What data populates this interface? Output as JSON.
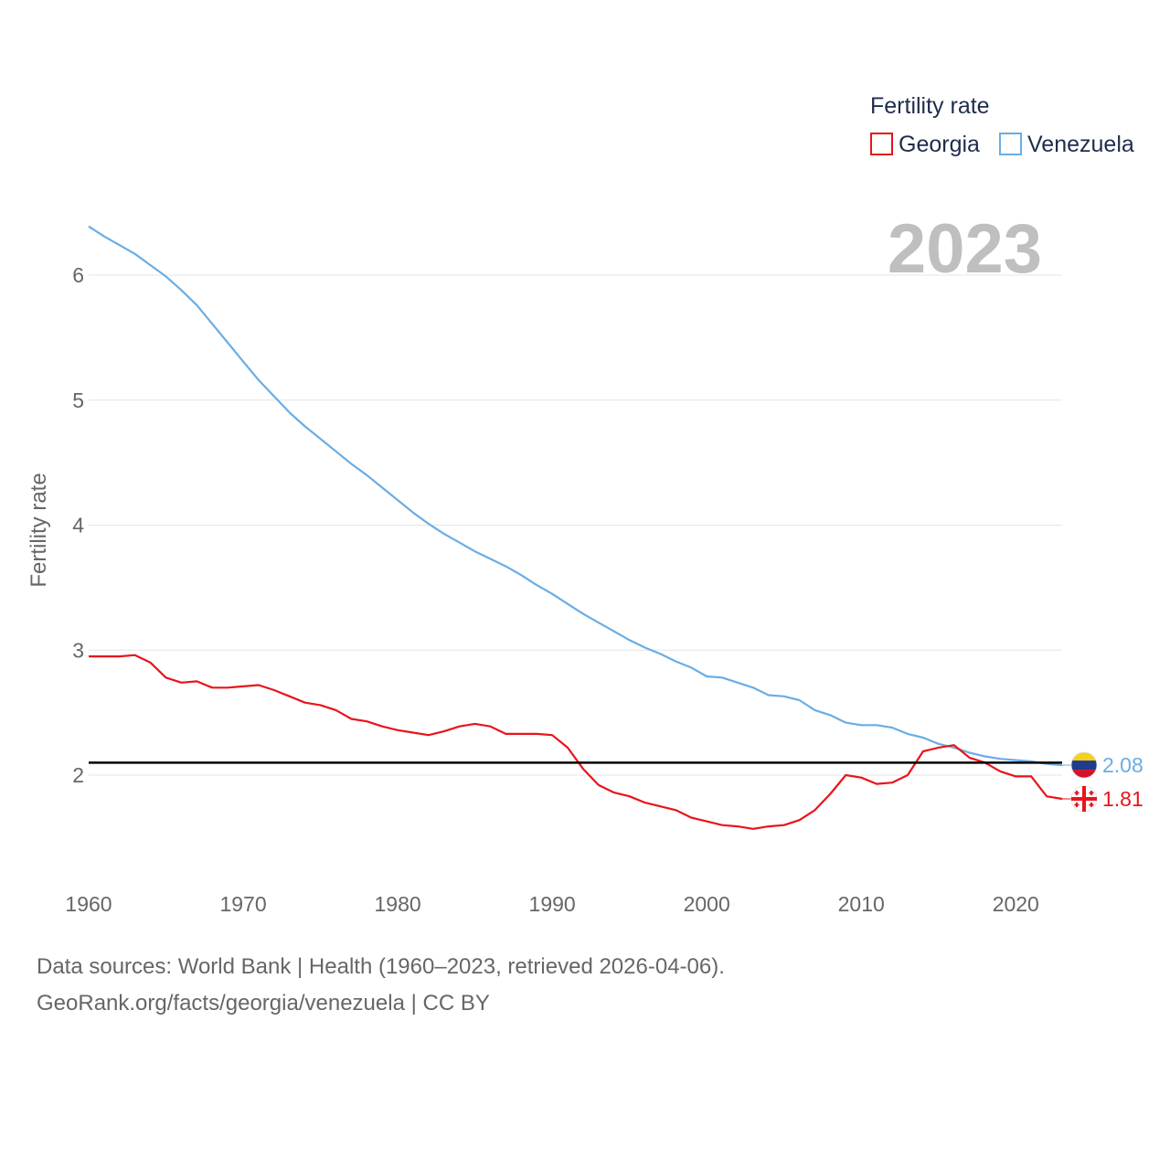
{
  "chart_data": {
    "type": "line",
    "legend_title": "Fertility rate",
    "ylabel": "Fertility rate",
    "year_label": "2023",
    "x_ticks": [
      "1960",
      "1970",
      "1980",
      "1990",
      "2000",
      "2010",
      "2020"
    ],
    "y_ticks": [
      "2",
      "3",
      "4",
      "5",
      "6"
    ],
    "xlim": [
      1960,
      2023
    ],
    "ylim": [
      1.3,
      6.4
    ],
    "reference_line": 2.1,
    "x": [
      1960,
      1961,
      1962,
      1963,
      1964,
      1965,
      1966,
      1967,
      1968,
      1969,
      1970,
      1971,
      1972,
      1973,
      1974,
      1975,
      1976,
      1977,
      1978,
      1979,
      1980,
      1981,
      1982,
      1983,
      1984,
      1985,
      1986,
      1987,
      1988,
      1989,
      1990,
      1991,
      1992,
      1993,
      1994,
      1995,
      1996,
      1997,
      1998,
      1999,
      2000,
      2001,
      2002,
      2003,
      2004,
      2005,
      2006,
      2007,
      2008,
      2009,
      2010,
      2011,
      2012,
      2013,
      2014,
      2015,
      2016,
      2017,
      2018,
      2019,
      2020,
      2021,
      2022,
      2023
    ],
    "series": [
      {
        "name": "Georgia",
        "color": "#e8141c",
        "end_label": "1.81",
        "flag": "georgia-flag",
        "values": [
          2.95,
          2.95,
          2.95,
          2.96,
          2.9,
          2.78,
          2.74,
          2.75,
          2.7,
          2.7,
          2.71,
          2.72,
          2.68,
          2.63,
          2.58,
          2.56,
          2.52,
          2.45,
          2.43,
          2.39,
          2.36,
          2.34,
          2.32,
          2.35,
          2.39,
          2.41,
          2.39,
          2.33,
          2.33,
          2.33,
          2.32,
          2.22,
          2.05,
          1.92,
          1.86,
          1.83,
          1.78,
          1.75,
          1.72,
          1.66,
          1.63,
          1.6,
          1.59,
          1.57,
          1.59,
          1.6,
          1.64,
          1.72,
          1.85,
          2.0,
          1.98,
          1.93,
          1.94,
          2.0,
          2.19,
          2.22,
          2.24,
          2.14,
          2.1,
          2.03,
          1.99,
          1.99,
          1.83,
          1.81
        ]
      },
      {
        "name": "Venezuela",
        "color": "#6aade4",
        "end_label": "2.08",
        "flag": "venezuela-flag",
        "values": [
          6.39,
          6.31,
          6.24,
          6.17,
          6.08,
          5.99,
          5.88,
          5.76,
          5.61,
          5.46,
          5.31,
          5.16,
          5.03,
          4.9,
          4.79,
          4.69,
          4.59,
          4.49,
          4.4,
          4.3,
          4.2,
          4.1,
          4.01,
          3.93,
          3.86,
          3.79,
          3.73,
          3.67,
          3.6,
          3.52,
          3.45,
          3.37,
          3.29,
          3.22,
          3.15,
          3.08,
          3.02,
          2.97,
          2.91,
          2.86,
          2.79,
          2.78,
          2.74,
          2.7,
          2.64,
          2.63,
          2.6,
          2.52,
          2.48,
          2.42,
          2.4,
          2.4,
          2.38,
          2.33,
          2.3,
          2.25,
          2.22,
          2.18,
          2.15,
          2.13,
          2.12,
          2.11,
          2.09,
          2.08
        ]
      }
    ]
  },
  "footer": {
    "line1": "Data sources: World Bank | Health (1960–2023, retrieved 2026-04-06).",
    "line2": "GeoRank.org/facts/georgia/venezuela | CC BY"
  }
}
